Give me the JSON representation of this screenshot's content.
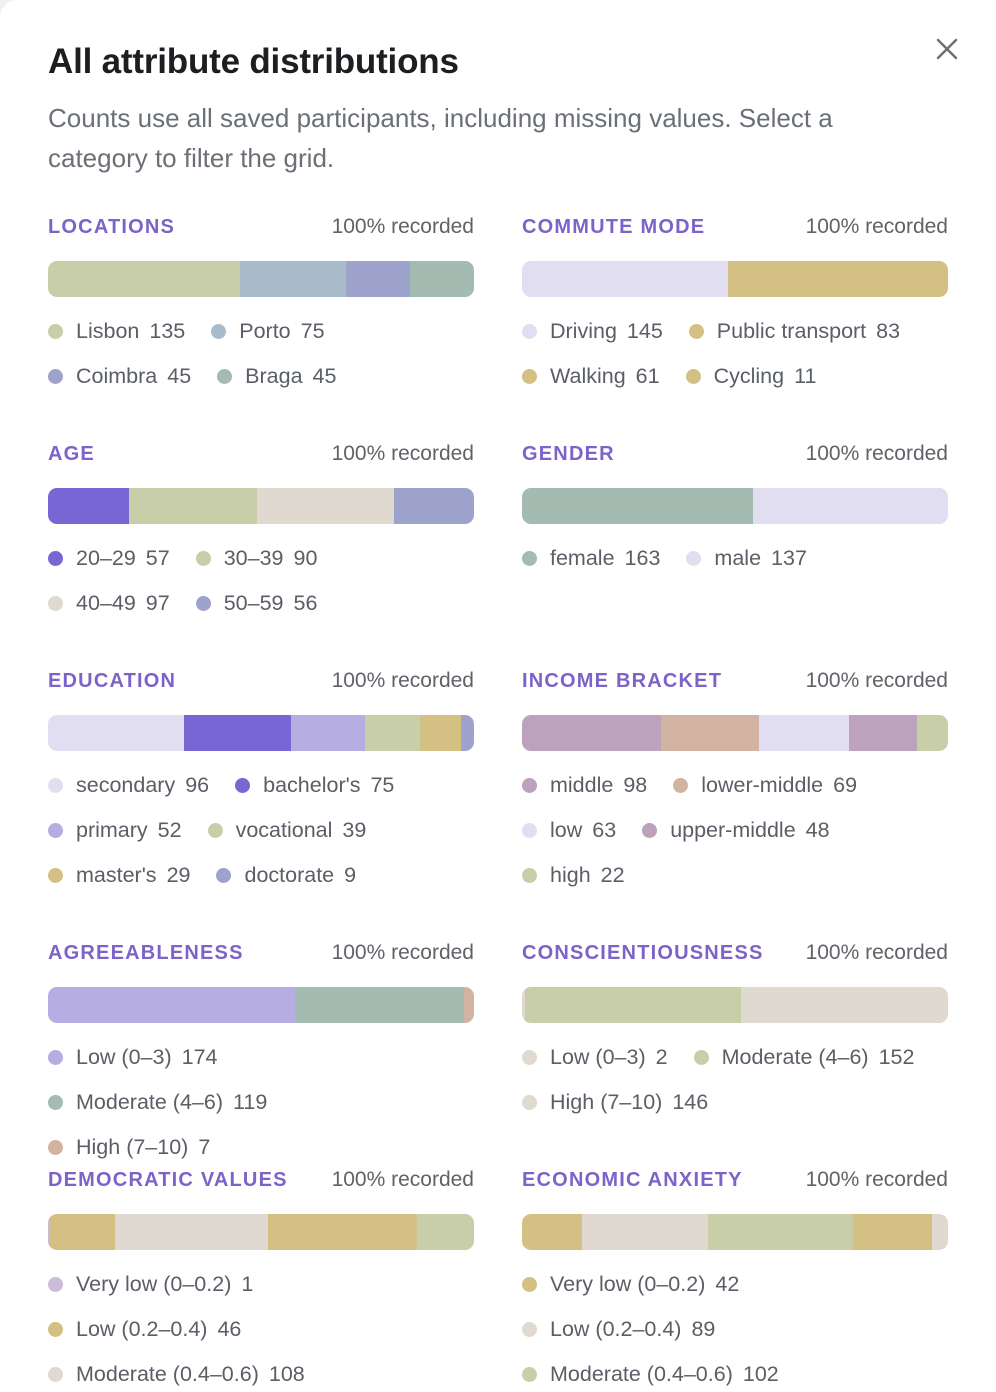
{
  "modal": {
    "title": "All attribute distributions",
    "subtitle": "Counts use all saved participants, including missing values. Select a category to filter the grid.",
    "close_icon": "close-icon"
  },
  "colors": {
    "olive": "#c8cfa8",
    "steel": "#a9bccc",
    "periwinkle": "#9ea3cc",
    "sage": "#a3bbb1",
    "lavender_light": "#e2def2",
    "gold": "#d5c084",
    "purple": "#7766d3",
    "beige": "#e0d9d0",
    "lilac": "#b6aee3",
    "mauve": "#bca2bd",
    "tan": "#d2b3a2",
    "pale_lilac": "#cdbbd9",
    "accent_title": "#7b63c9"
  },
  "attributes": [
    {
      "name": "LOCATIONS",
      "recorded": "100% recorded",
      "items": [
        {
          "label": "Lisbon",
          "count": "135",
          "value": 135,
          "color": "#c8cfa8"
        },
        {
          "label": "Porto",
          "count": "75",
          "value": 75,
          "color": "#a9bccc"
        },
        {
          "label": "Coimbra",
          "count": "45",
          "value": 45,
          "color": "#9ea3cc"
        },
        {
          "label": "Braga",
          "count": "45",
          "value": 45,
          "color": "#a3bbb1"
        }
      ]
    },
    {
      "name": "COMMUTE MODE",
      "recorded": "100% recorded",
      "items": [
        {
          "label": "Driving",
          "count": "145",
          "value": 145,
          "color": "#e2def2"
        },
        {
          "label": "Public transport",
          "count": "83",
          "value": 83,
          "color": "#d5c084"
        },
        {
          "label": "Walking",
          "count": "61",
          "value": 61,
          "color": "#d5c084"
        },
        {
          "label": "Cycling",
          "count": "11",
          "value": 11,
          "color": "#d5c084"
        }
      ]
    },
    {
      "name": "AGE",
      "recorded": "100% recorded",
      "items": [
        {
          "label": "20–29",
          "count": "57",
          "value": 57,
          "color": "#7766d3"
        },
        {
          "label": "30–39",
          "count": "90",
          "value": 90,
          "color": "#c8cfa8"
        },
        {
          "label": "40–49",
          "count": "97",
          "value": 97,
          "color": "#e0d9d0"
        },
        {
          "label": "50–59",
          "count": "56",
          "value": 56,
          "color": "#9ea3cc"
        }
      ]
    },
    {
      "name": "GENDER",
      "recorded": "100% recorded",
      "items": [
        {
          "label": "female",
          "count": "163",
          "value": 163,
          "color": "#a3bbb1"
        },
        {
          "label": "male",
          "count": "137",
          "value": 137,
          "color": "#e2def2"
        }
      ]
    },
    {
      "name": "EDUCATION",
      "recorded": "100% recorded",
      "items": [
        {
          "label": "secondary",
          "count": "96",
          "value": 96,
          "color": "#e2def2"
        },
        {
          "label": "bachelor's",
          "count": "75",
          "value": 75,
          "color": "#7766d3"
        },
        {
          "label": "primary",
          "count": "52",
          "value": 52,
          "color": "#b6aee3"
        },
        {
          "label": "vocational",
          "count": "39",
          "value": 39,
          "color": "#c8cfa8"
        },
        {
          "label": "master's",
          "count": "29",
          "value": 29,
          "color": "#d5c084"
        },
        {
          "label": "doctorate",
          "count": "9",
          "value": 9,
          "color": "#9ea3cc"
        }
      ]
    },
    {
      "name": "INCOME BRACKET",
      "recorded": "100% recorded",
      "items": [
        {
          "label": "middle",
          "count": "98",
          "value": 98,
          "color": "#bca2bd"
        },
        {
          "label": "lower-middle",
          "count": "69",
          "value": 69,
          "color": "#d2b3a2"
        },
        {
          "label": "low",
          "count": "63",
          "value": 63,
          "color": "#e2def2"
        },
        {
          "label": "upper-middle",
          "count": "48",
          "value": 48,
          "color": "#bca2bd"
        },
        {
          "label": "high",
          "count": "22",
          "value": 22,
          "color": "#c8cfa8"
        }
      ]
    },
    {
      "name": "AGREEABLENESS",
      "recorded": "100% recorded",
      "items": [
        {
          "label": "Low (0–3)",
          "count": "174",
          "value": 174,
          "color": "#b6aee3"
        },
        {
          "label": "Moderate (4–6)",
          "count": "119",
          "value": 119,
          "color": "#a3bbb1"
        },
        {
          "label": "High (7–10)",
          "count": "7",
          "value": 7,
          "color": "#d2b3a2"
        }
      ]
    },
    {
      "name": "CONSCIENTIOUSNESS",
      "recorded": "100% recorded",
      "items": [
        {
          "label": "Low (0–3)",
          "count": "2",
          "value": 2,
          "color": "#e0d9d0"
        },
        {
          "label": "Moderate (4–6)",
          "count": "152",
          "value": 152,
          "color": "#c8cfa8"
        },
        {
          "label": "High (7–10)",
          "count": "146",
          "value": 146,
          "color": "#e0d9d0"
        }
      ]
    },
    {
      "name": "DEMOCRATIC VALUES",
      "recorded": "100% recorded",
      "items": [
        {
          "label": "Very low (0–0.2)",
          "count": "1",
          "value": 1,
          "color": "#cdbbd9"
        },
        {
          "label": "Low (0.2–0.4)",
          "count": "46",
          "value": 46,
          "color": "#d5c084"
        },
        {
          "label": "Moderate (0.4–0.6)",
          "count": "108",
          "value": 108,
          "color": "#e0d9d0"
        }
      ],
      "bar_extra": [
        {
          "value": 105,
          "color": "#d5c084"
        },
        {
          "value": 40,
          "color": "#c8cfa8"
        }
      ]
    },
    {
      "name": "ECONOMIC ANXIETY",
      "recorded": "100% recorded",
      "items": [
        {
          "label": "Very low (0–0.2)",
          "count": "42",
          "value": 42,
          "color": "#d5c084"
        },
        {
          "label": "Low (0.2–0.4)",
          "count": "89",
          "value": 89,
          "color": "#e0d9d0"
        },
        {
          "label": "Moderate (0.4–0.6)",
          "count": "102",
          "value": 102,
          "color": "#c8cfa8"
        }
      ],
      "bar_extra": [
        {
          "value": 56,
          "color": "#d5c084"
        },
        {
          "value": 11,
          "color": "#e0d9d0"
        }
      ]
    }
  ]
}
